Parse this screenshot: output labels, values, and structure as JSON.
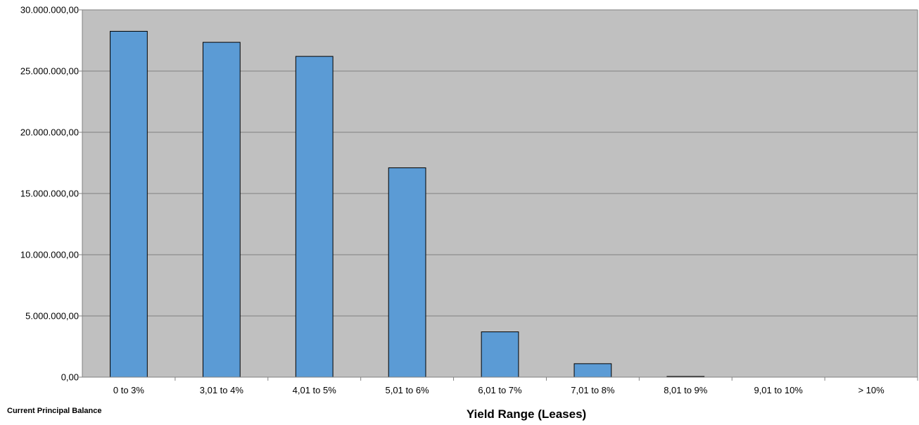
{
  "chart_data": {
    "type": "bar",
    "categories": [
      "0 to 3%",
      "3,01 to 4%",
      "4,01 to 5%",
      "5,01 to 6%",
      "6,01 to 7%",
      "7,01 to 8%",
      "8,01 to 9%",
      "9,01 to 10%",
      "> 10%"
    ],
    "values": [
      28250000,
      27350000,
      26200000,
      17100000,
      3700000,
      1100000,
      30000,
      0,
      0
    ],
    "ylim": [
      0,
      30000000
    ],
    "yticks": [
      0,
      5000000,
      10000000,
      15000000,
      20000000,
      25000000,
      30000000
    ],
    "ytick_labels": [
      "0,00",
      "5.000.000,00",
      "10.000.000,00",
      "15.000.000,00",
      "20.000.000,00",
      "25.000.000,00",
      "30.000.000,00"
    ],
    "xlabel": "Yield Range (Leases)",
    "ylabel": "Current Principal  Balance",
    "grid": true,
    "legend": "none",
    "colors": {
      "bar": "#5b9bd5",
      "plot_background": "#c0c0c0",
      "gridline": "#808080",
      "axis": "#808080"
    }
  }
}
